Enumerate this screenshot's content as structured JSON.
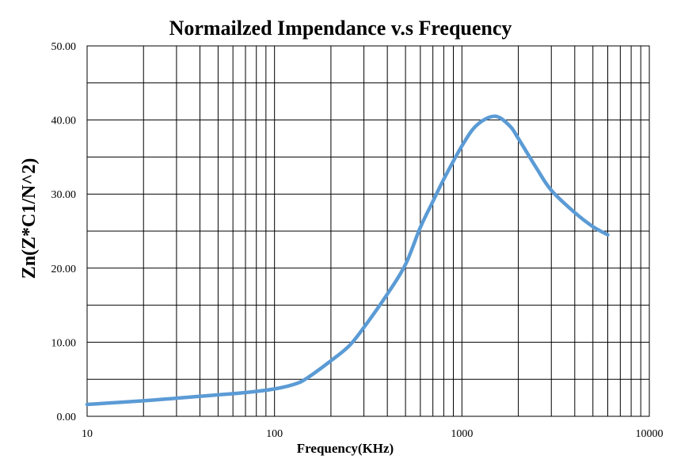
{
  "chart_data": {
    "type": "line",
    "title": "Normailzed Impendance v.s Frequency",
    "xlabel": "Frequency(KHz)",
    "ylabel": "Zn(Z*C1/N^2)",
    "xscale": "log",
    "xlim": [
      10,
      10000
    ],
    "ylim": [
      0,
      50
    ],
    "grid": true,
    "legend": "none",
    "x_tick_labels": [
      "10",
      "100",
      "1000",
      "10000"
    ],
    "y_tick_labels": [
      "0.00",
      "10.00",
      "20.00",
      "30.00",
      "40.00",
      "50.00"
    ],
    "series": [
      {
        "color": "#5B9BD5",
        "x": [
          10,
          20,
          30,
          50,
          70,
          100,
          130,
          150,
          200,
          250,
          300,
          400,
          500,
          600,
          700,
          800,
          1000,
          1200,
          1500,
          1800,
          2000,
          2500,
          3000,
          4000,
          5000,
          6000
        ],
        "y": [
          1.6,
          2.1,
          2.45,
          2.9,
          3.2,
          3.7,
          4.4,
          5.2,
          7.5,
          9.5,
          12.0,
          16.5,
          20.5,
          25.5,
          29.0,
          32.0,
          36.5,
          39.3,
          40.5,
          39.2,
          37.5,
          33.5,
          30.5,
          27.5,
          25.6,
          24.5
        ]
      }
    ]
  }
}
